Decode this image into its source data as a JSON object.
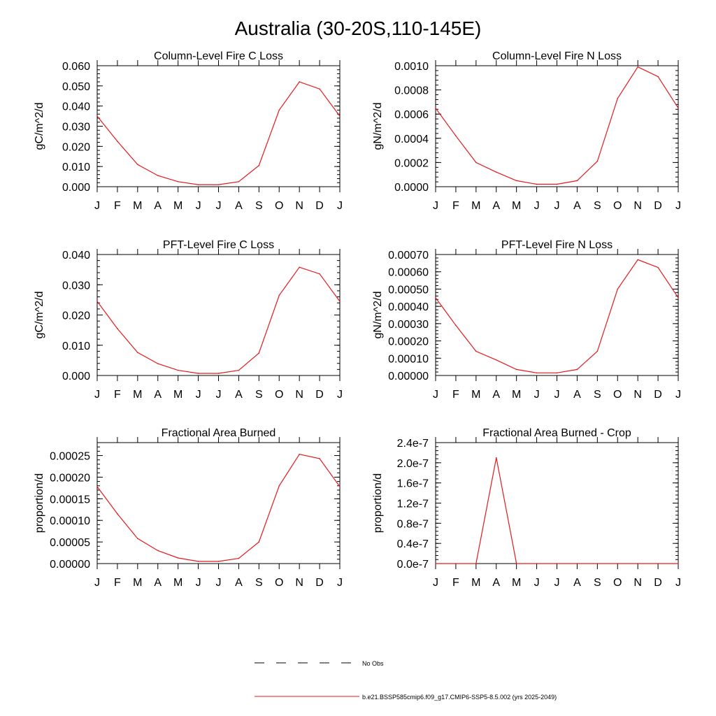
{
  "figure": {
    "title": "Australia (30-20S,110-145E)"
  },
  "colors": {
    "model_line": "#e31a1c",
    "obs_line": "#000000",
    "axis": "#000000"
  },
  "legend": {
    "placement": "bottom-center",
    "entries": [
      {
        "label": "No Obs",
        "style": "dashed",
        "color": "#000000"
      },
      {
        "label": "b.e21.BSSP585cmip6.f09_g17.CMIP6-SSP5-8.5.002 (yrs 2025-2049)",
        "style": "solid",
        "color": "#e31a1c"
      }
    ]
  },
  "chart_data": [
    {
      "type": "line",
      "title": "Column-Level Fire C Loss",
      "xlabel": "",
      "ylabel": "gC/m^2/d",
      "x": [
        "J",
        "F",
        "M",
        "A",
        "M",
        "J",
        "J",
        "A",
        "S",
        "O",
        "N",
        "D",
        "J"
      ],
      "ylim": [
        0,
        0.06
      ],
      "yticks": [
        0,
        0.01,
        0.02,
        0.03,
        0.04,
        0.05,
        0.06
      ],
      "ytick_labels": [
        "0.000",
        "0.010",
        "0.020",
        "0.030",
        "0.040",
        "0.050",
        "0.060"
      ],
      "grid": false,
      "series": [
        {
          "values": [
            0.035,
            0.0225,
            0.011,
            0.0055,
            0.0025,
            0.001,
            0.001,
            0.0025,
            0.0105,
            0.038,
            0.052,
            0.0485,
            0.035
          ]
        }
      ]
    },
    {
      "type": "line",
      "title": "Column-Level Fire N Loss",
      "xlabel": "",
      "ylabel": "gN/m^2/d",
      "x": [
        "J",
        "F",
        "M",
        "A",
        "M",
        "J",
        "J",
        "A",
        "S",
        "O",
        "N",
        "D",
        "J"
      ],
      "ylim": [
        0,
        0.001
      ],
      "yticks": [
        0,
        0.0002,
        0.0004,
        0.0006,
        0.0008,
        0.001
      ],
      "ytick_labels": [
        "0.0000",
        "0.0002",
        "0.0004",
        "0.0006",
        "0.0008",
        "0.0010"
      ],
      "grid": false,
      "series": [
        {
          "values": [
            0.00065,
            0.00042,
            0.0002,
            0.00012,
            5e-05,
            2e-05,
            2e-05,
            5e-05,
            0.00021,
            0.00073,
            0.00099,
            0.00091,
            0.00065
          ]
        }
      ]
    },
    {
      "type": "line",
      "title": "PFT-Level Fire C Loss",
      "xlabel": "",
      "ylabel": "gC/m^2/d",
      "x": [
        "J",
        "F",
        "M",
        "A",
        "M",
        "J",
        "J",
        "A",
        "S",
        "O",
        "N",
        "D",
        "J"
      ],
      "ylim": [
        0,
        0.04
      ],
      "yticks": [
        0,
        0.01,
        0.02,
        0.03,
        0.04
      ],
      "ytick_labels": [
        "0.000",
        "0.010",
        "0.020",
        "0.030",
        "0.040"
      ],
      "grid": false,
      "series": [
        {
          "values": [
            0.0245,
            0.0155,
            0.0076,
            0.0039,
            0.0017,
            0.0007,
            0.0007,
            0.0017,
            0.0074,
            0.0265,
            0.0358,
            0.0336,
            0.0245
          ]
        }
      ]
    },
    {
      "type": "line",
      "title": "PFT-Level Fire N Loss",
      "xlabel": "",
      "ylabel": "gN/m^2/d",
      "x": [
        "J",
        "F",
        "M",
        "A",
        "M",
        "J",
        "J",
        "A",
        "S",
        "O",
        "N",
        "D",
        "J"
      ],
      "ylim": [
        0,
        0.0007
      ],
      "yticks": [
        0,
        0.0001,
        0.0002,
        0.0003,
        0.0004,
        0.0005,
        0.0006,
        0.0007
      ],
      "ytick_labels": [
        "0.00000",
        "0.00010",
        "0.00020",
        "0.00030",
        "0.00040",
        "0.00050",
        "0.00060",
        "0.00070"
      ],
      "grid": false,
      "series": [
        {
          "values": [
            0.00045,
            0.00029,
            0.00014,
            9e-05,
            3.5e-05,
            1.5e-05,
            1.5e-05,
            3.5e-05,
            0.00014,
            0.0005,
            0.00067,
            0.000625,
            0.00045
          ]
        }
      ]
    },
    {
      "type": "line",
      "title": "Fractional Area Burned",
      "xlabel": "",
      "ylabel": "proportion/d",
      "x": [
        "J",
        "F",
        "M",
        "A",
        "M",
        "J",
        "J",
        "A",
        "S",
        "O",
        "N",
        "D",
        "J"
      ],
      "ylim": [
        0,
        0.00028
      ],
      "yticks": [
        0,
        5e-05,
        0.0001,
        0.00015,
        0.0002,
        0.00025
      ],
      "ytick_labels": [
        "0.00000",
        "0.00005",
        "0.00010",
        "0.00015",
        "0.00020",
        "0.00025"
      ],
      "grid": false,
      "series": [
        {
          "values": [
            0.000178,
            0.000115,
            5.8e-05,
            3e-05,
            1.3e-05,
            5e-06,
            5e-06,
            1.2e-05,
            5e-05,
            0.00018,
            0.000253,
            0.000243,
            0.000178
          ]
        }
      ]
    },
    {
      "type": "line",
      "title": "Fractional Area Burned - Crop",
      "xlabel": "",
      "ylabel": "proportion/d",
      "x": [
        "J",
        "F",
        "M",
        "A",
        "M",
        "J",
        "J",
        "A",
        "S",
        "O",
        "N",
        "D",
        "J"
      ],
      "ylim": [
        0,
        2.4e-07
      ],
      "yticks": [
        0,
        4e-08,
        8e-08,
        1.2e-07,
        1.6e-07,
        2e-07,
        2.4e-07
      ],
      "ytick_labels": [
        "0.0e-7",
        "0.4e-7",
        "0.8e-7",
        "1.2e-7",
        "1.6e-7",
        "2.0e-7",
        "2.4e-7"
      ],
      "grid": false,
      "series": [
        {
          "values": [
            0,
            0,
            0,
            2.1e-07,
            0,
            0,
            0,
            0,
            0,
            0,
            0,
            0,
            0
          ]
        }
      ]
    }
  ]
}
